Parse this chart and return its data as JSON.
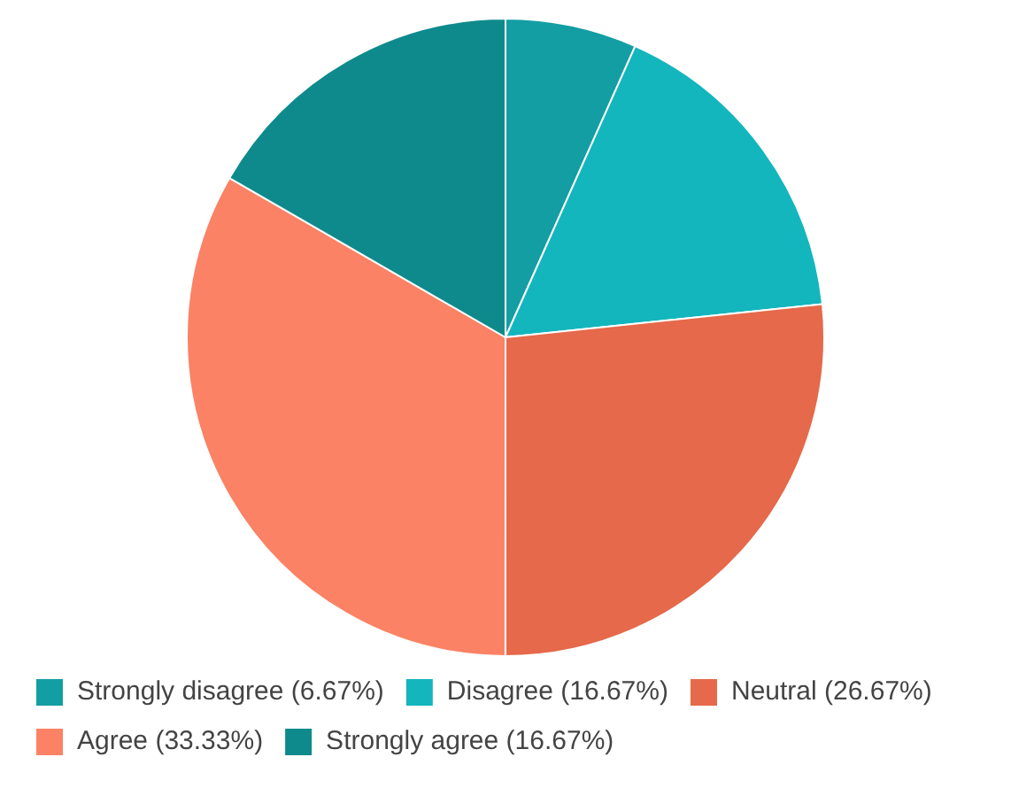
{
  "chart_data": {
    "type": "pie",
    "categories": [
      "Strongly disagree (6.67%)",
      "Disagree (16.67%)",
      "Neutral (26.67%)",
      "Agree (33.33%)",
      "Strongly agree (16.67%)"
    ],
    "values": [
      6.67,
      16.67,
      26.67,
      33.33,
      16.67
    ],
    "colors": [
      "#139ea3",
      "#13b6bd",
      "#e5694a",
      "#fb8264",
      "#0f8a8c"
    ],
    "legend": "bottom"
  }
}
